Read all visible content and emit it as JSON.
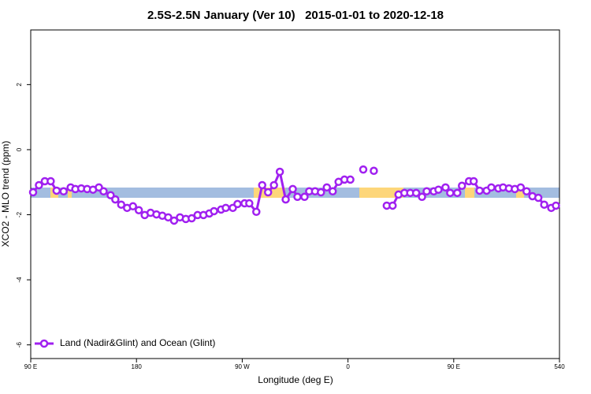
{
  "chart_data": {
    "type": "line",
    "title": "2.5S-2.5N January (Ver 10)   2015-01-01 to 2020-12-18",
    "xlabel": "Longitude (deg E)",
    "ylabel": "XCO2 - MLO trend (ppm)",
    "xlim": [
      90,
      540
    ],
    "ylim": [
      -6.42,
      3.68
    ],
    "xticks": [
      {
        "value": 90,
        "label": "90 E"
      },
      180,
      {
        "value": 270,
        "label": "90 W"
      },
      {
        "value": 360,
        "label": "0"
      },
      {
        "value": 450,
        "label": "90 E"
      },
      540
    ],
    "yticks": [
      -6,
      -4,
      -2,
      0,
      2
    ],
    "legend": "bottom-left",
    "x": [
      92,
      97,
      102,
      107,
      112,
      118,
      124,
      128,
      133,
      138,
      143,
      148,
      152,
      158,
      162,
      167,
      172,
      177,
      182,
      187,
      192,
      197,
      202,
      207,
      212,
      217,
      222,
      227,
      232,
      237,
      242,
      246,
      252,
      256,
      262,
      266,
      272,
      276,
      282,
      287,
      292,
      297,
      302,
      307,
      313,
      317,
      323,
      327,
      332,
      337,
      342,
      347,
      352,
      357,
      362,
      367,
      373,
      378,
      382,
      387,
      393,
      398,
      403,
      408,
      413,
      418,
      423,
      427,
      433,
      437,
      443,
      447,
      453,
      457,
      463,
      467,
      472,
      478,
      482,
      488,
      492,
      497,
      502,
      507,
      512,
      517,
      522,
      527,
      533,
      537
    ],
    "series": [
      {
        "name": "Land (Nadir&Glint) and Ocean (Glint)",
        "color": "#a020f0",
        "values": [
          -1.31,
          -1.09,
          -0.97,
          -0.97,
          -1.26,
          -1.28,
          -1.16,
          -1.21,
          -1.19,
          -1.21,
          -1.23,
          -1.16,
          -1.28,
          -1.4,
          -1.53,
          -1.69,
          -1.79,
          -1.74,
          -1.86,
          -2.01,
          -1.94,
          -1.99,
          -2.03,
          -2.08,
          -2.18,
          -2.08,
          -2.13,
          -2.11,
          -2.01,
          -2.01,
          -1.96,
          -1.89,
          -1.84,
          -1.79,
          -1.79,
          -1.67,
          -1.65,
          -1.65,
          -1.91,
          -1.09,
          -1.31,
          -1.09,
          -0.68,
          -1.53,
          -1.21,
          -1.45,
          -1.45,
          -1.28,
          -1.28,
          -1.31,
          -1.16,
          -1.28,
          -0.99,
          -0.92,
          -0.92,
          null,
          -0.61,
          null,
          -0.65,
          null,
          -1.72,
          -1.72,
          -1.38,
          -1.33,
          -1.33,
          -1.33,
          -1.45,
          -1.28,
          -1.28,
          -1.23,
          -1.16,
          -1.33,
          -1.33,
          -1.11,
          -0.97,
          -0.97,
          -1.26,
          -1.26,
          -1.16,
          -1.19,
          -1.16,
          -1.19,
          -1.21,
          -1.16,
          -1.28,
          -1.43,
          -1.48,
          -1.69,
          -1.79,
          -1.72
        ]
      }
    ]
  }
}
